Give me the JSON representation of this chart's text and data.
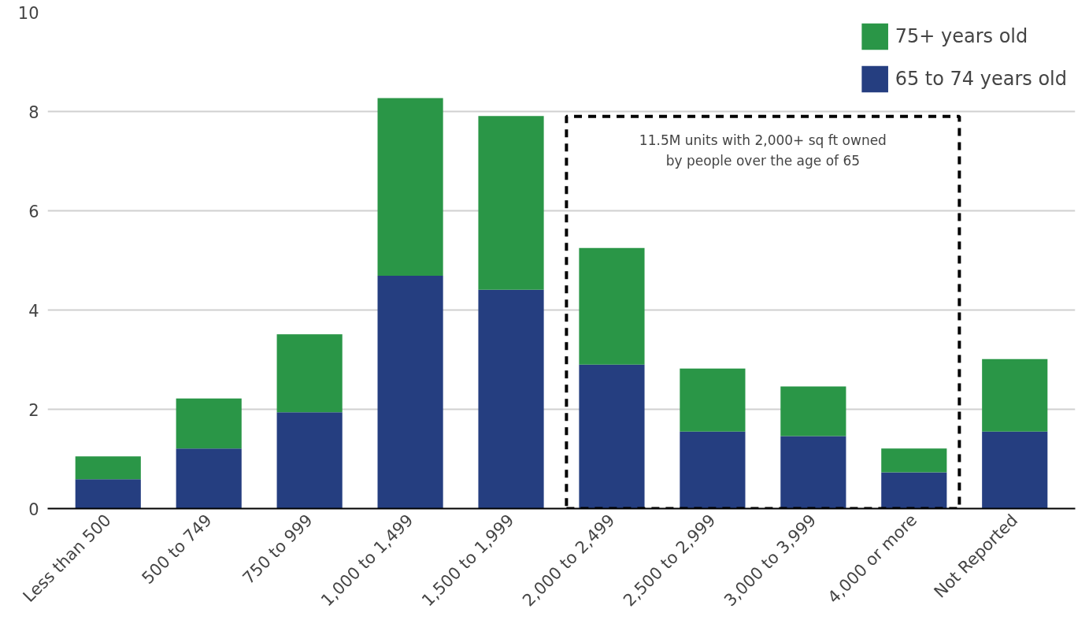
{
  "chart_data": {
    "type": "bar",
    "stacked": true,
    "categories": [
      "Less than 500",
      "500 to 749",
      "750 to 999",
      "1,000 to 1,499",
      "1,500 to 1,999",
      "2,000 to 2,499",
      "2,500 to 2,999",
      "3,000 to 3,999",
      "4,000 or more",
      "Not Reported"
    ],
    "series": [
      {
        "name": "65 to 74 years old",
        "color": "#253e80",
        "values": [
          0.59,
          1.21,
          1.94,
          4.69,
          4.41,
          2.9,
          1.55,
          1.46,
          0.73,
          1.55
        ]
      },
      {
        "name": "75+ years old",
        "color": "#2a9647",
        "values": [
          0.46,
          1.01,
          1.57,
          3.58,
          3.5,
          2.35,
          1.27,
          1.0,
          0.48,
          1.46
        ]
      }
    ],
    "ylim": [
      0,
      10
    ],
    "yticks": [
      0,
      2,
      4,
      6,
      8,
      10
    ],
    "grid": "y",
    "legend": "top right",
    "annotations": [
      "11.5M units with 2,000+ sq ft owned by people over the age of 65"
    ]
  }
}
